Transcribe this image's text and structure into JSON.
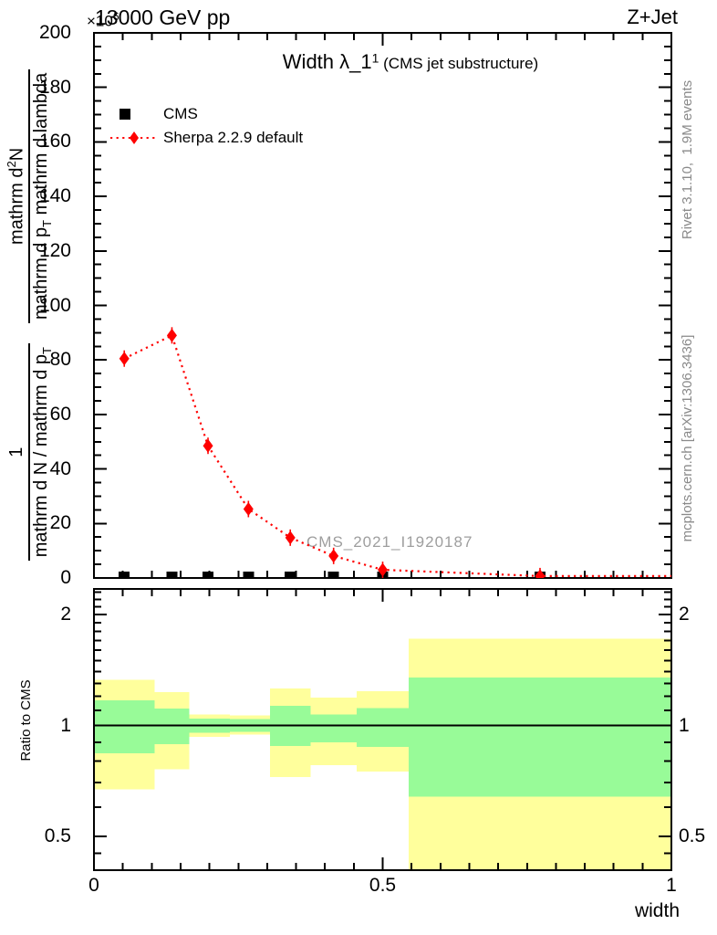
{
  "header": {
    "axis_multiplier": "×10",
    "axis_multiplier_exp": "6",
    "beam": "13000 GeV pp",
    "process": "Z+Jet"
  },
  "title": {
    "main": "Width λ_1",
    "sup": "1",
    "suffix": " (CMS jet substructure)"
  },
  "legend": {
    "items": [
      {
        "label": "CMS",
        "marker": "square",
        "color": "#000000"
      },
      {
        "label": "Sherpa 2.2.9 default",
        "marker": "diamond",
        "color": "#ff0000"
      }
    ]
  },
  "watermark": "CMS_2021_I1920187",
  "side_notes": {
    "top": "Rivet 3.1.10,  1.9M events",
    "bottom": "mcplots.cern.ch [arXiv:1306.3436]"
  },
  "axes": {
    "y_label": {
      "frac1": {
        "num": "1",
        "den": "mathrm d N / mathrm d p",
        "den_sub": "T"
      },
      "frac2": {
        "num_a": "mathrm d",
        "num_sup": "2",
        "num_b": "N",
        "den_a": "mathrm d p",
        "den_sub": "T",
        "den_b": " mathrm d lambda"
      }
    },
    "ratio_label": "Ratio to CMS",
    "x_label": "width"
  },
  "chart_data": {
    "type": "scatter",
    "title": "Width λ_1^1 (CMS jet substructure)",
    "xlabel": "width",
    "main_panel": {
      "ylim": [
        0,
        200
      ],
      "y_axis_multiplier": "1e6",
      "yticks": [
        0,
        20,
        40,
        60,
        80,
        100,
        120,
        140,
        160,
        180,
        200
      ],
      "yminor_step": 5,
      "xlim": [
        0,
        1
      ],
      "xticks": [
        0,
        0.5,
        1
      ],
      "xtick_labels": [
        "0",
        "0.5",
        "1"
      ],
      "xminor_step": 0.05,
      "series": [
        {
          "name": "CMS",
          "marker": "square",
          "color": "#000000",
          "x": [
            0.0525,
            0.135,
            0.1975,
            0.2675,
            0.34,
            0.415,
            0.5,
            0.7725
          ],
          "y": [
            1,
            1,
            1,
            1,
            1,
            1,
            1,
            1
          ]
        },
        {
          "name": "Sherpa 2.2.9 default",
          "marker": "diamond",
          "color": "#ff0000",
          "line": "dotted",
          "x": [
            0.0525,
            0.135,
            0.1975,
            0.2675,
            0.34,
            0.415,
            0.5,
            0.7725
          ],
          "y": [
            80.5,
            89,
            48.5,
            25.3,
            14.8,
            8.1,
            3.0,
            0.7
          ]
        }
      ]
    },
    "ratio_panel": {
      "ylabel": "Ratio to CMS",
      "yscale": "log",
      "ylim": [
        0.4,
        2.35
      ],
      "yticks": [
        0.5,
        1,
        2
      ],
      "ytick_labels": [
        "0.5",
        "1",
        "2"
      ],
      "yminors": [
        0.45,
        0.6,
        0.7,
        0.8,
        0.9,
        1.1,
        1.2,
        1.3,
        1.4,
        1.5,
        1.6,
        1.7,
        1.8,
        1.9,
        2.1,
        2.2,
        2.3
      ],
      "reference_line": 1,
      "bin_edges": [
        0,
        0.105,
        0.165,
        0.235,
        0.305,
        0.375,
        0.455,
        0.545,
        1.0
      ],
      "bands": [
        {
          "outer": [
            0.67,
            1.33
          ],
          "inner": [
            0.84,
            1.17
          ]
        },
        {
          "outer": [
            0.76,
            1.23
          ],
          "inner": [
            0.89,
            1.11
          ]
        },
        {
          "outer": [
            0.93,
            1.07
          ],
          "inner": [
            0.955,
            1.045
          ]
        },
        {
          "outer": [
            0.945,
            1.065
          ],
          "inner": [
            0.96,
            1.04
          ]
        },
        {
          "outer": [
            0.725,
            1.26
          ],
          "inner": [
            0.88,
            1.13
          ]
        },
        {
          "outer": [
            0.78,
            1.19
          ],
          "inner": [
            0.9,
            1.07
          ]
        },
        {
          "outer": [
            0.75,
            1.24
          ],
          "inner": [
            0.875,
            1.115
          ]
        },
        {
          "outer": [
            0.38,
            1.72
          ],
          "inner": [
            0.64,
            1.35
          ]
        }
      ],
      "band_colors": {
        "outer": "#ffff9c",
        "inner": "#98fb98"
      }
    },
    "colors": {
      "frame": "#000000",
      "mc_line": "#ff0000",
      "data_marker": "#000000"
    }
  }
}
